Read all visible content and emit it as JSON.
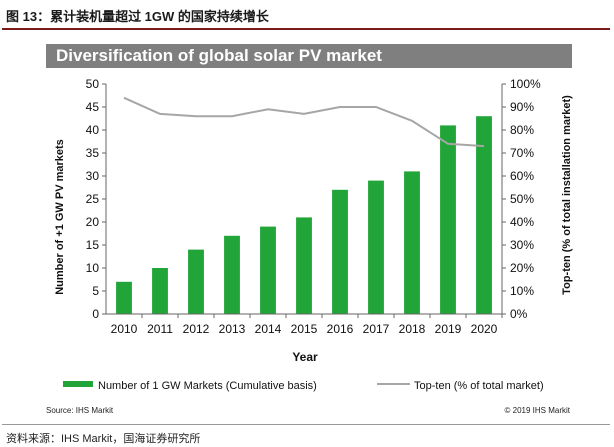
{
  "figure_title": "图 13：累计装机量超过 1GW 的国家持续增长",
  "banner_title": "Diversification  of global solar PV market",
  "source_left": "Source: IHS Markit",
  "source_right": "© 2019 IHS Markit",
  "footnote": "资料来源：IHS Markit，国海证券研究所",
  "colors": {
    "bar": "#22a538",
    "line": "#a6a6a6",
    "banner": "#7f7f7f"
  },
  "chart_data": {
    "type": "bar",
    "title": "Diversification  of global solar PV market",
    "xlabel": "Year",
    "ylabel": "Number of +1 GW PV markets",
    "y2label": "Top-ten (% of total installation market)",
    "categories": [
      "2010",
      "2011",
      "2012",
      "2013",
      "2014",
      "2015",
      "2016",
      "2017",
      "2018",
      "2019",
      "2020"
    ],
    "ylim": [
      0,
      50
    ],
    "yticks": [
      "0",
      "5",
      "10",
      "15",
      "20",
      "25",
      "30",
      "35",
      "40",
      "45",
      "50"
    ],
    "y2lim": [
      0,
      100
    ],
    "y2ticks": [
      "0%",
      "10%",
      "20%",
      "30%",
      "40%",
      "50%",
      "60%",
      "70%",
      "80%",
      "90%",
      "100%"
    ],
    "series": [
      {
        "name": "Number of 1 GW Markets (Cumulative basis)",
        "type": "bar",
        "values": [
          7,
          10,
          14,
          17,
          19,
          21,
          27,
          29,
          31,
          41,
          43
        ]
      },
      {
        "name": "Top-ten (% of total market)",
        "type": "line",
        "axis": "right",
        "values": [
          94,
          87,
          86,
          86,
          89,
          87,
          90,
          90,
          84,
          74,
          73
        ]
      }
    ],
    "legend_position": "bottom"
  }
}
